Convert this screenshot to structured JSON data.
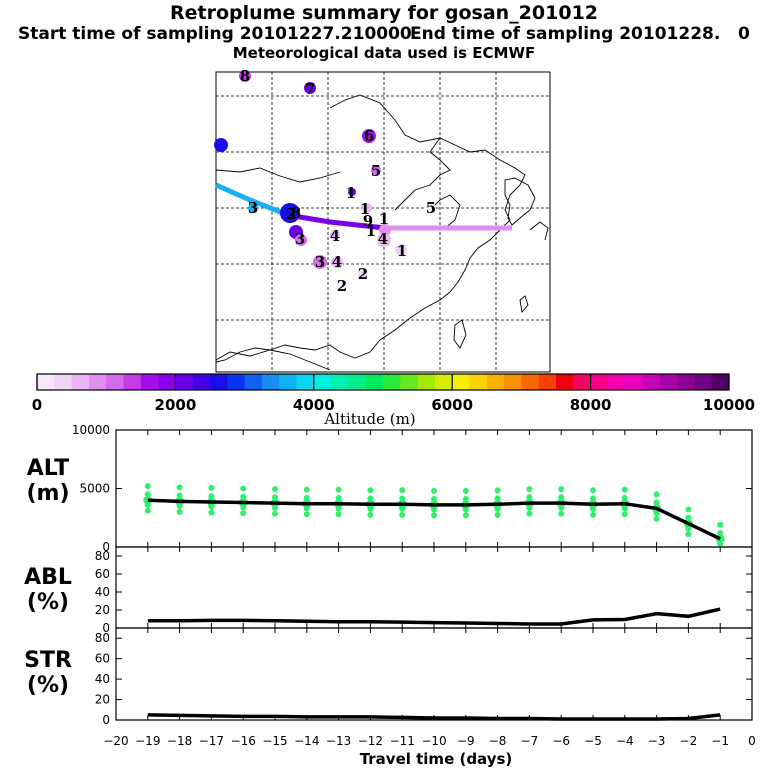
{
  "header": {
    "title": "Retroplume summary for gosan_201012",
    "start": "Start time of sampling 20101227.210000",
    "end": "End time of sampling 20101228.",
    "end_suffix": "0",
    "met": "Meteorological data used is ECMWF"
  },
  "colorbar": {
    "label": "Altitude (m)",
    "ticks": [
      "0",
      "2000",
      "4000",
      "6000",
      "8000",
      "10000"
    ],
    "colors": [
      "#f6e8fb",
      "#f1d2f8",
      "#ebb5f3",
      "#e08ef0",
      "#d46aec",
      "#c23de8",
      "#a80ce6",
      "#8a00e8",
      "#6a00ea",
      "#4100e8",
      "#1a0ee8",
      "#0a34f0",
      "#1260f2",
      "#1a8cf2",
      "#0fb2f4",
      "#0ad4f0",
      "#00f0e0",
      "#00f0b4",
      "#00ee8a",
      "#00ea60",
      "#2ae83a",
      "#6ae61e",
      "#a6e80c",
      "#d6ec00",
      "#f6f000",
      "#fad400",
      "#fab200",
      "#f89000",
      "#f86a00",
      "#f83e00",
      "#ec0010",
      "#f80062",
      "#f8008a",
      "#f400ac",
      "#e600c0",
      "#c800b8",
      "#aa00a8",
      "#8c0094",
      "#700080",
      "#520064"
    ]
  },
  "map": {
    "labels": [
      "1",
      "1",
      "1",
      "1",
      "1",
      "2",
      "2",
      "2",
      "3",
      "3",
      "3",
      "4",
      "4",
      "4",
      "5",
      "5",
      "6",
      "7",
      "8",
      "8",
      "9"
    ]
  },
  "chart_data": {
    "type": "line",
    "x_axis": {
      "label": "Travel time (days)",
      "range": [
        -20,
        0
      ],
      "ticks": [
        -20,
        -19,
        -18,
        -17,
        -16,
        -15,
        -14,
        -13,
        -12,
        -11,
        -10,
        -9,
        -8,
        -7,
        -6,
        -5,
        -4,
        -3,
        -2,
        -1,
        0
      ]
    },
    "panels": [
      {
        "name": "ALT",
        "ylabel": "ALT",
        "yunit": "(m)",
        "ylim": [
          0,
          10000
        ],
        "yticks": [
          0,
          5000,
          10000
        ],
        "x": [
          -19,
          -18,
          -17,
          -16,
          -15,
          -14,
          -13,
          -12,
          -11,
          -10,
          -9,
          -8,
          -7,
          -6,
          -5,
          -4,
          -3,
          -2,
          -1
        ],
        "values": [
          4000,
          3900,
          3850,
          3800,
          3750,
          3700,
          3700,
          3650,
          3650,
          3600,
          3600,
          3650,
          3750,
          3750,
          3650,
          3700,
          3300,
          2000,
          700
        ]
      },
      {
        "name": "ABL",
        "ylabel": "ABL",
        "yunit": "(%)",
        "ylim": [
          0,
          90
        ],
        "yticks": [
          0,
          20,
          40,
          60,
          80
        ],
        "x": [
          -19,
          -18,
          -17,
          -16,
          -15,
          -14,
          -13,
          -12,
          -11,
          -10,
          -9,
          -8,
          -7,
          -6,
          -5,
          -4,
          -3,
          -2,
          -1
        ],
        "values": [
          8,
          8,
          8.5,
          8.5,
          8,
          7.5,
          7,
          7,
          6.5,
          6,
          5.5,
          5,
          4.5,
          4.5,
          9,
          9.5,
          16,
          13,
          21
        ]
      },
      {
        "name": "STR",
        "ylabel": "STR",
        "yunit": "(%)",
        "ylim": [
          0,
          90
        ],
        "yticks": [
          0,
          20,
          40,
          60,
          80
        ],
        "x": [
          -19,
          -18,
          -17,
          -16,
          -15,
          -14,
          -13,
          -12,
          -11,
          -10,
          -9,
          -8,
          -7,
          -6,
          -5,
          -4,
          -3,
          -2,
          -1
        ],
        "values": [
          5,
          4.5,
          4,
          3.5,
          3.5,
          3,
          3,
          3,
          2.5,
          2,
          2,
          1.5,
          1.5,
          1,
          1,
          1,
          1,
          1.5,
          5
        ]
      }
    ]
  }
}
